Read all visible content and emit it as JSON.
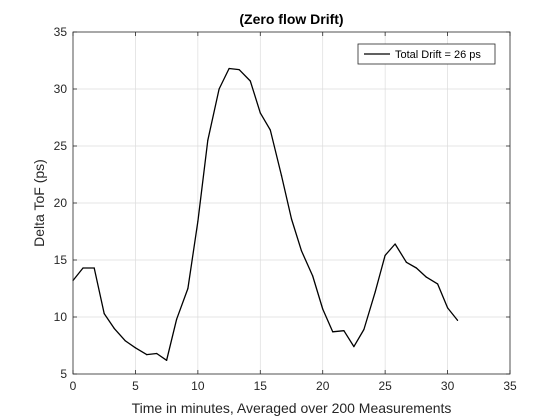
{
  "chart_data": {
    "type": "line",
    "title": "(Zero flow Drift)",
    "xlabel": "Time in minutes, Averaged over 200 Measurements",
    "ylabel": "Delta ToF (ps)",
    "xlim": [
      0,
      35
    ],
    "ylim": [
      5,
      35
    ],
    "xticks": [
      0,
      5,
      10,
      15,
      20,
      25,
      30,
      35
    ],
    "yticks": [
      5,
      10,
      15,
      20,
      25,
      30,
      35
    ],
    "grid": true,
    "legend_position": "top-right",
    "series": [
      {
        "name": "Total Drift = 26 ps",
        "color": "#000000",
        "x": [
          0,
          0.8,
          1.7,
          2.5,
          3.3,
          4.2,
          5.0,
          5.9,
          6.7,
          7.5,
          8.3,
          9.2,
          10.0,
          10.8,
          11.7,
          12.5,
          13.3,
          14.2,
          15.0,
          15.8,
          16.7,
          17.5,
          18.3,
          19.2,
          20.0,
          20.8,
          21.7,
          22.5,
          23.3,
          24.2,
          25.0,
          25.8,
          26.7,
          27.5,
          28.3,
          29.2,
          30.0,
          30.8
        ],
        "y": [
          13.2,
          14.3,
          14.3,
          10.3,
          9.0,
          7.9,
          7.3,
          6.7,
          6.8,
          6.2,
          9.8,
          12.5,
          18.4,
          25.5,
          30.0,
          31.8,
          31.7,
          30.7,
          27.9,
          26.4,
          22.4,
          18.6,
          15.8,
          13.6,
          10.7,
          8.7,
          8.8,
          7.4,
          8.9,
          12.2,
          15.4,
          16.4,
          14.8,
          14.3,
          13.5,
          12.9,
          10.8,
          9.7
        ]
      }
    ]
  }
}
